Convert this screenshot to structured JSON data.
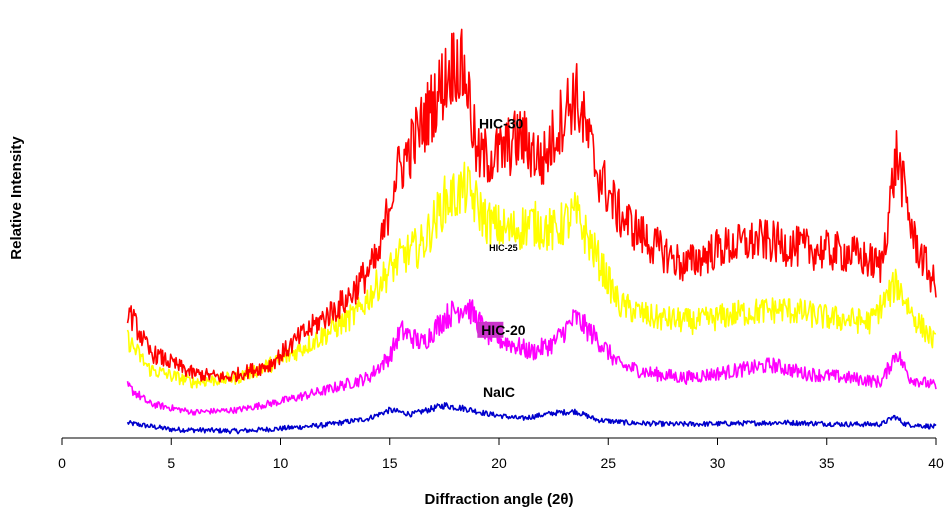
{
  "chart_data": {
    "type": "line",
    "title": "",
    "xlabel": "Diffraction angle (2θ)",
    "ylabel": "Relative Intensity",
    "xlim": [
      0,
      40
    ],
    "ylim": [
      0,
      100
    ],
    "xticks": [
      0,
      5,
      10,
      15,
      20,
      25,
      30,
      35,
      40
    ],
    "x_tick_labels": [
      "0",
      "5",
      "10",
      "15",
      "20",
      "25",
      "30",
      "35",
      "40"
    ],
    "y_axis_visible": false,
    "grid": false,
    "legend": "none",
    "x_range": [
      3,
      40
    ],
    "series": [
      {
        "name": "NaIC",
        "color": "#0000CC",
        "label_highlight": "",
        "points": [
          [
            3,
            3.5
          ],
          [
            5,
            2.0
          ],
          [
            8,
            1.6
          ],
          [
            10,
            2.2
          ],
          [
            12,
            3.0
          ],
          [
            14,
            4.5
          ],
          [
            15,
            6.5
          ],
          [
            16,
            5.5
          ],
          [
            17.5,
            7.6
          ],
          [
            18.5,
            6.8
          ],
          [
            19.5,
            5.6
          ],
          [
            21,
            4.5
          ],
          [
            22.5,
            5.8
          ],
          [
            23.5,
            6.2
          ],
          [
            24.5,
            4.2
          ],
          [
            26,
            3.5
          ],
          [
            28,
            3.2
          ],
          [
            30,
            3.3
          ],
          [
            33,
            3.6
          ],
          [
            36,
            3.2
          ],
          [
            37.5,
            3.2
          ],
          [
            38.1,
            5.0
          ],
          [
            38.6,
            3.2
          ],
          [
            40,
            2.6
          ]
        ]
      },
      {
        "name": "HIC-20",
        "color": "#FF00FF",
        "label_highlight": "#CC33CC",
        "points": [
          [
            3,
            12
          ],
          [
            4,
            8
          ],
          [
            6,
            6
          ],
          [
            8,
            6.5
          ],
          [
            10,
            8.5
          ],
          [
            12,
            11
          ],
          [
            14,
            14
          ],
          [
            15,
            19
          ],
          [
            15.5,
            25
          ],
          [
            16.5,
            22
          ],
          [
            17.5,
            28
          ],
          [
            18.5,
            31
          ],
          [
            19.5,
            24
          ],
          [
            20.5,
            22
          ],
          [
            21.5,
            20
          ],
          [
            22.5,
            22
          ],
          [
            23.5,
            28
          ],
          [
            24.5,
            23
          ],
          [
            25.5,
            17
          ],
          [
            27,
            15
          ],
          [
            28.5,
            14
          ],
          [
            30,
            15
          ],
          [
            32.5,
            17
          ],
          [
            34,
            15
          ],
          [
            36,
            14
          ],
          [
            37.5,
            13
          ],
          [
            38.2,
            20
          ],
          [
            38.8,
            14
          ],
          [
            40,
            12
          ]
        ]
      },
      {
        "name": "HIC-25",
        "color": "#FFFF00",
        "label_highlight": "",
        "points": [
          [
            3,
            23
          ],
          [
            4,
            16
          ],
          [
            6,
            13
          ],
          [
            8,
            14
          ],
          [
            10,
            18
          ],
          [
            12,
            24
          ],
          [
            13.5,
            29
          ],
          [
            14.5,
            36
          ],
          [
            15.5,
            42
          ],
          [
            16.5,
            45
          ],
          [
            17.5,
            55
          ],
          [
            18.5,
            58
          ],
          [
            19.5,
            50
          ],
          [
            20.5,
            48
          ],
          [
            21.5,
            50
          ],
          [
            22.5,
            48
          ],
          [
            23.5,
            52
          ],
          [
            24.5,
            42
          ],
          [
            25.5,
            31
          ],
          [
            27,
            28
          ],
          [
            29,
            27
          ],
          [
            31,
            29
          ],
          [
            33,
            30
          ],
          [
            35,
            28
          ],
          [
            37,
            27
          ],
          [
            38.2,
            36
          ],
          [
            39,
            28
          ],
          [
            40,
            22
          ]
        ]
      },
      {
        "name": "HIC-30",
        "color": "#FF0000",
        "label_highlight": "",
        "points": [
          [
            3,
            30
          ],
          [
            4,
            20
          ],
          [
            6,
            15
          ],
          [
            7.5,
            14
          ],
          [
            9.5,
            17
          ],
          [
            11,
            24
          ],
          [
            13,
            32
          ],
          [
            14.5,
            42
          ],
          [
            15.2,
            60
          ],
          [
            16,
            68
          ],
          [
            17,
            78
          ],
          [
            18,
            88
          ],
          [
            18.5,
            84
          ],
          [
            19,
            65
          ],
          [
            20,
            66
          ],
          [
            21,
            70
          ],
          [
            22,
            64
          ],
          [
            23,
            76
          ],
          [
            23.5,
            80
          ],
          [
            24.5,
            62
          ],
          [
            25.5,
            52
          ],
          [
            27,
            45
          ],
          [
            28.5,
            40
          ],
          [
            30,
            44
          ],
          [
            32,
            46
          ],
          [
            34,
            44
          ],
          [
            36,
            43
          ],
          [
            37.5,
            40
          ],
          [
            38.2,
            66
          ],
          [
            39,
            46
          ],
          [
            40,
            35
          ]
        ]
      }
    ],
    "annotations": [
      {
        "text": "HIC-30",
        "series": "HIC-30",
        "x": 20.1,
        "y": 72
      },
      {
        "text": "HIC-25",
        "series": "HIC-25",
        "x": 20.2,
        "y": 43.5
      },
      {
        "text": "HIC-20",
        "series": "HIC-20",
        "x": 20.2,
        "y": 24
      },
      {
        "text": "NaIC",
        "series": "NaIC",
        "x": 20.0,
        "y": 9.5
      }
    ]
  }
}
